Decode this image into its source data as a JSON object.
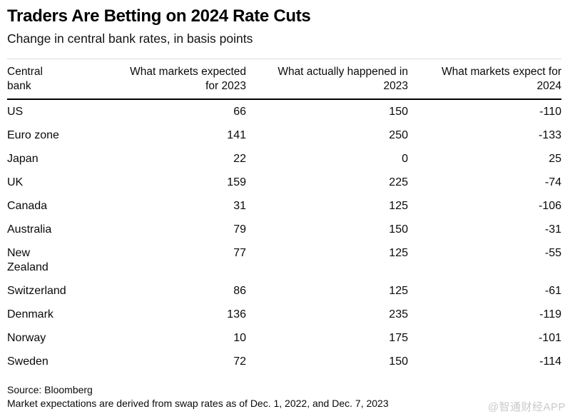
{
  "chart_data": {
    "type": "table",
    "title": "Traders Are Betting on 2024 Rate Cuts",
    "subtitle": "Change in central bank rates, in basis points",
    "columns": [
      "Central bank",
      "What markets expected for 2023",
      "What actually happened in 2023",
      "What markets expect for 2024"
    ],
    "rows": [
      {
        "bank": "US",
        "values": [
          66,
          150,
          -110
        ]
      },
      {
        "bank": "Euro zone",
        "values": [
          141,
          250,
          -133
        ]
      },
      {
        "bank": "Japan",
        "values": [
          22,
          0,
          25
        ]
      },
      {
        "bank": "UK",
        "values": [
          159,
          225,
          -74
        ]
      },
      {
        "bank": "Canada",
        "values": [
          31,
          125,
          -106
        ]
      },
      {
        "bank": "Australia",
        "values": [
          79,
          150,
          -31
        ]
      },
      {
        "bank": "New Zealand",
        "values": [
          77,
          125,
          -55
        ]
      },
      {
        "bank": "Switzerland",
        "values": [
          86,
          125,
          -61
        ]
      },
      {
        "bank": "Denmark",
        "values": [
          136,
          235,
          -119
        ]
      },
      {
        "bank": "Norway",
        "values": [
          10,
          175,
          -101
        ]
      },
      {
        "bank": "Sweden",
        "values": [
          72,
          150,
          -114
        ]
      }
    ],
    "source": "Source: Bloomberg",
    "note": "Market expectations are derived from swap rates as of Dec. 1, 2022, and Dec. 7, 2023"
  },
  "watermark": "@智通财经APP",
  "colors": {
    "background": "#ffffff",
    "text": "#000000",
    "header_rule": "#000000",
    "top_rule": "#dcdcdc",
    "watermark": "#c9c9c9"
  }
}
